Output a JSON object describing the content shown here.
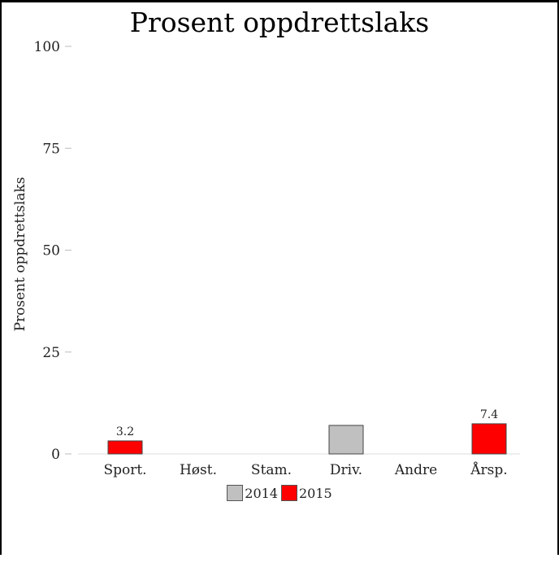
{
  "chart_data": {
    "type": "bar",
    "title": "Prosent oppdrettslaks",
    "xlabel": "",
    "ylabel": "Prosent oppdrettslaks",
    "ylim": [
      0,
      100
    ],
    "yticks": [
      0,
      25,
      50,
      75,
      100
    ],
    "categories": [
      "Sport.",
      "Høst.",
      "Stam.",
      "Driv.",
      "Andre",
      "Årsp."
    ],
    "series": [
      {
        "name": "2014",
        "color": "#c0c0c0",
        "values": [
          null,
          null,
          null,
          7.0,
          null,
          null
        ],
        "labels": [
          null,
          null,
          null,
          null,
          null,
          null
        ]
      },
      {
        "name": "2015",
        "color": "#ff0000",
        "values": [
          3.2,
          null,
          null,
          null,
          null,
          7.4
        ],
        "labels": [
          "3.2",
          null,
          null,
          null,
          null,
          "7.4"
        ]
      }
    ],
    "legend_position": "bottom",
    "grid": false
  }
}
